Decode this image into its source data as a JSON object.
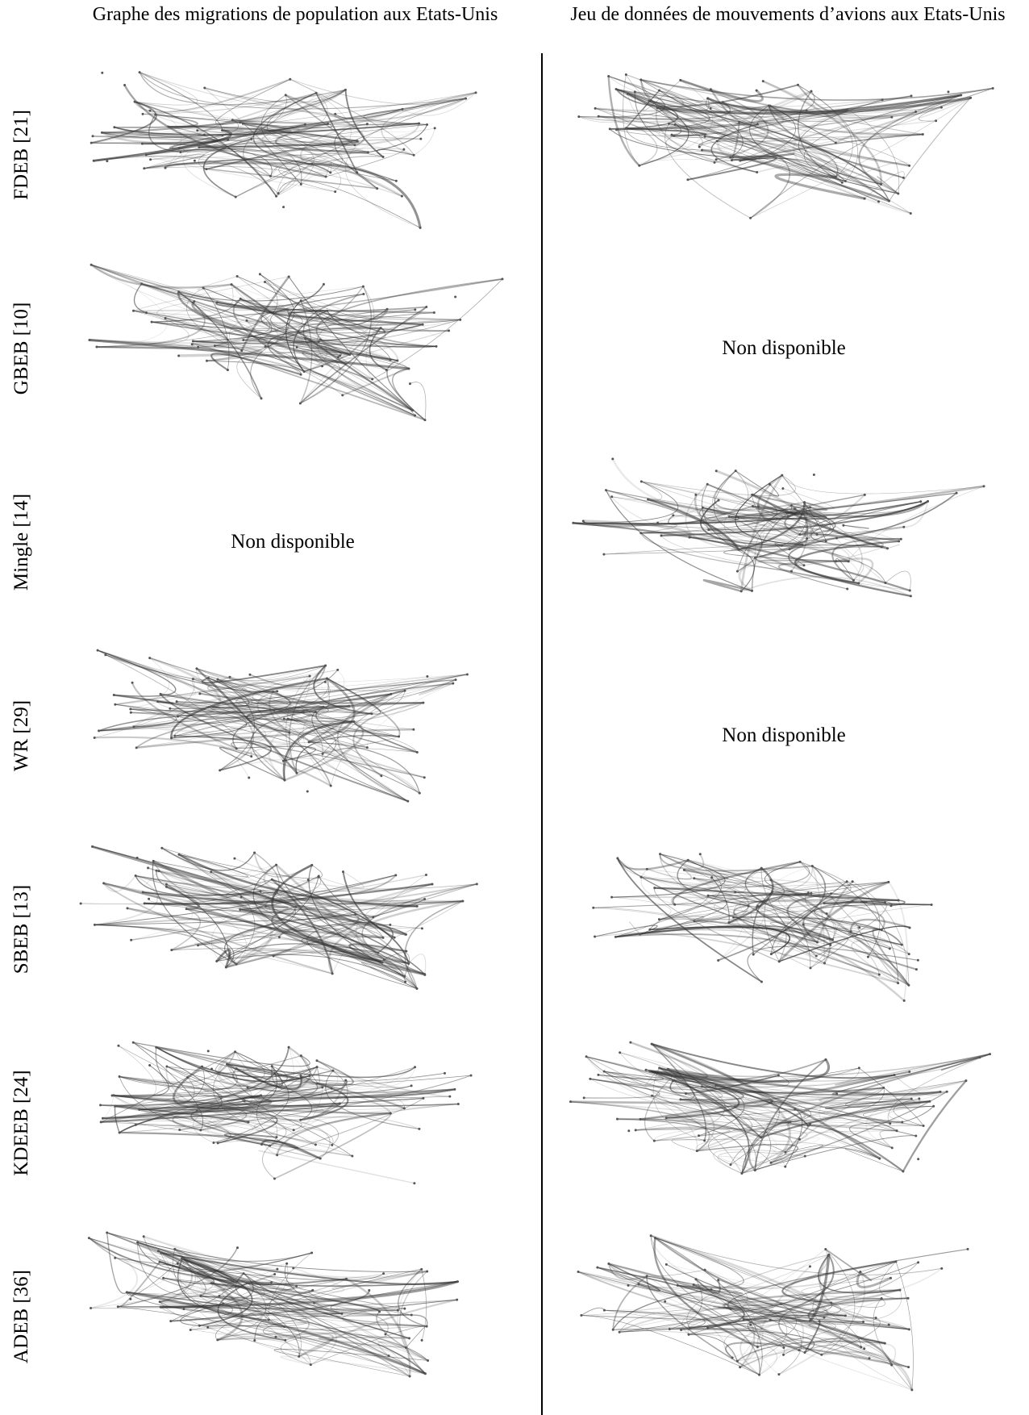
{
  "header": {
    "left": "Graphe des migrations de population aux Etats-Unis",
    "right": "Jeu de données de mouvements d’avions aux Etats-Unis"
  },
  "rows": [
    {
      "label": "FDEB [21]"
    },
    {
      "label": "GBEB [10]",
      "right": "Non disponible"
    },
    {
      "label": "Mingle [14]",
      "left": "Non disponible"
    },
    {
      "label": "WR [29]",
      "right": "Non disponible"
    },
    {
      "label": "SBEB [13]"
    },
    {
      "label": "KDEEB [24]"
    },
    {
      "label": "ADEB [36]"
    }
  ]
}
